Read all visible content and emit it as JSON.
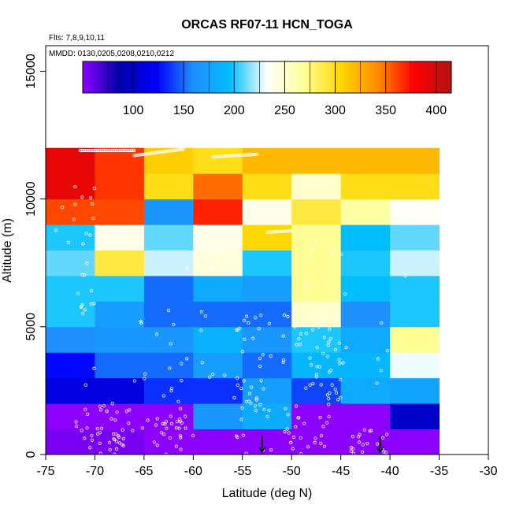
{
  "chart_data": {
    "type": "heatmap",
    "title": "ORCAS RF07-11 HCN_TOGA",
    "annotations": [
      "Flts: 7,8,9,10,11",
      "MMDD: 0130,0205,0208,0210,0212"
    ],
    "xlabel": "Latitude (deg N)",
    "ylabel": "Altitude (m)",
    "xlim": [
      -75,
      -30
    ],
    "ylim": [
      0,
      16000
    ],
    "x_ticks": [
      -75,
      -70,
      -65,
      -60,
      -55,
      -50,
      -45,
      -40,
      -35,
      -30
    ],
    "y_ticks": [
      0,
      5000,
      10000,
      15000
    ],
    "x_edges": [
      -75,
      -70,
      -65,
      -60,
      -55,
      -50,
      -45,
      -40,
      -35
    ],
    "y_edges": [
      0,
      1000,
      2000,
      3000,
      4000,
      5000,
      6000,
      7000,
      8000,
      9000,
      10000,
      11000,
      12000
    ],
    "values": [
      [
        55,
        55,
        30,
        30,
        30,
        30,
        30,
        30
      ],
      [
        30,
        30,
        20,
        165,
        180,
        30,
        30,
        100
      ],
      [
        110,
        110,
        135,
        135,
        170,
        140,
        180,
        175
      ],
      [
        125,
        150,
        150,
        170,
        150,
        190,
        190,
        230
      ],
      [
        160,
        165,
        165,
        185,
        165,
        200,
        180,
        270
      ],
      [
        200,
        170,
        150,
        150,
        150,
        250,
        160,
        200
      ],
      [
        200,
        200,
        150,
        180,
        170,
        270,
        195,
        200
      ],
      [
        210,
        290,
        225,
        245,
        200,
        270,
        200,
        225
      ],
      [
        200,
        240,
        210,
        240,
        305,
        270,
        195,
        210
      ],
      [
        360,
        360,
        165,
        370,
        240,
        290,
        265,
        235
      ],
      [
        390,
        365,
        300,
        350,
        300,
        250,
        300,
        300
      ],
      [
        390,
        365,
        310,
        300,
        320,
        320,
        320,
        320
      ]
    ],
    "colorbar": {
      "range": [
        50,
        415
      ],
      "ticks": [
        100,
        150,
        200,
        250,
        300,
        350,
        400
      ],
      "colors": [
        "#8b00ff",
        "#0000a8",
        "#0000ff",
        "#1e90ff",
        "#00bfff",
        "#ffffff",
        "#ffff99",
        "#ffd700",
        "#ff8c00",
        "#ff0000",
        "#b01414"
      ]
    },
    "arrows_x": [
      -53,
      -41
    ],
    "grid": false,
    "legend": "none"
  }
}
